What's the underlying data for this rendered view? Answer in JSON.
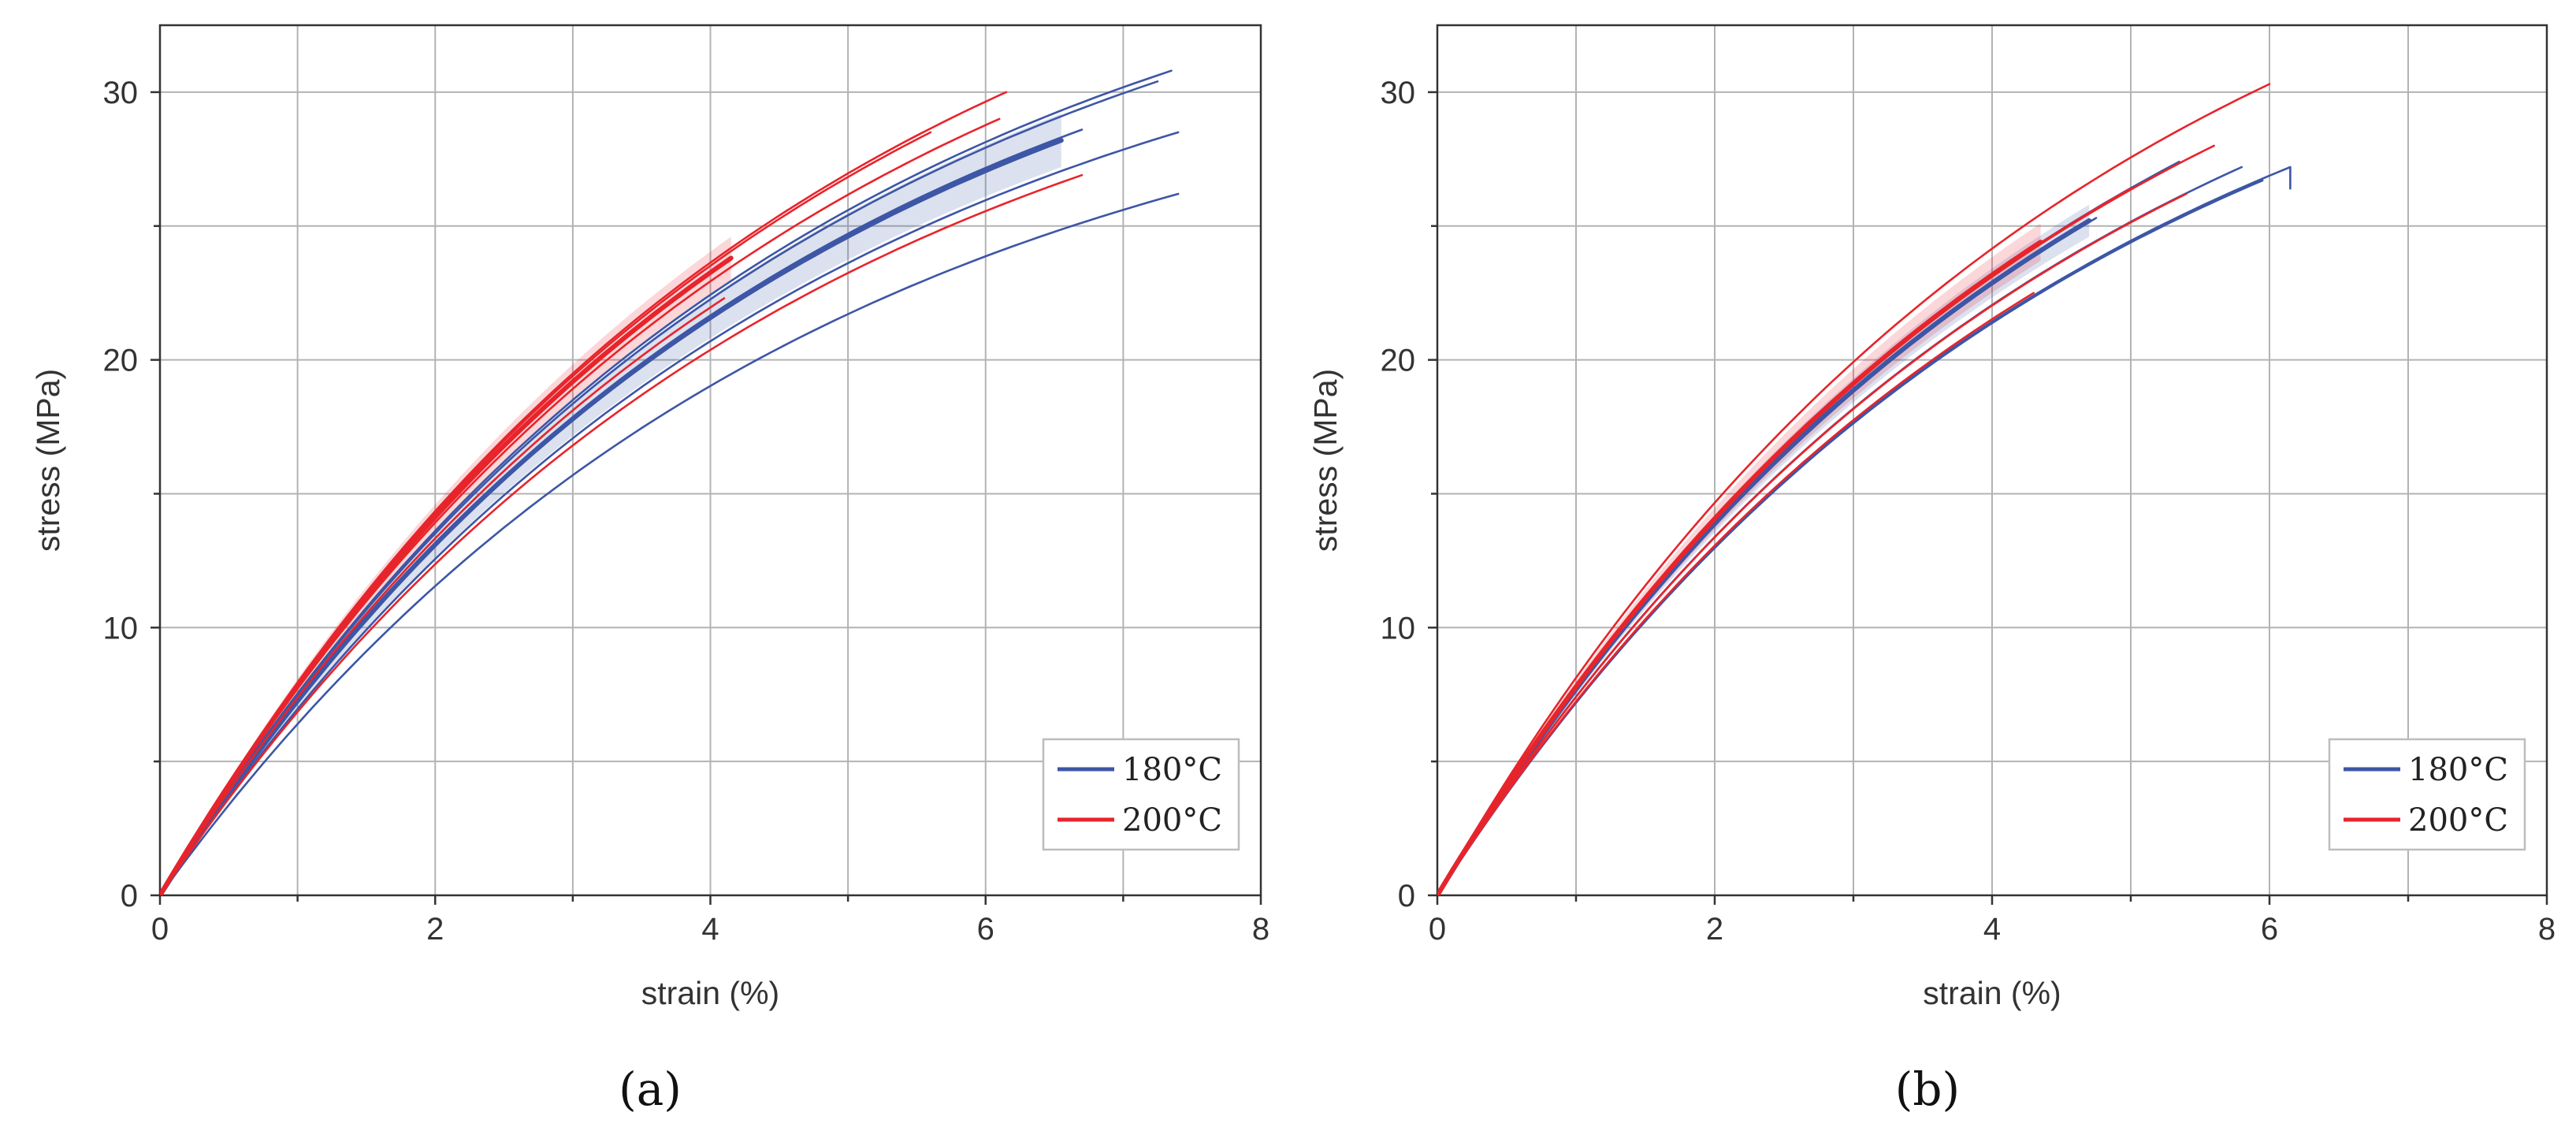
{
  "figure": {
    "captions": [
      "(a)",
      "(b)"
    ]
  },
  "colors": {
    "180": "#3d56a6",
    "200": "#e8242b",
    "band180": "#3d56a6",
    "band200": "#e8242b"
  },
  "chart_data": [
    {
      "type": "line",
      "panel": "a",
      "caption": "(a)",
      "xlabel": "strain (%)",
      "ylabel": "stress (MPa)",
      "xlim": [
        0,
        8
      ],
      "ylim": [
        0,
        32.5
      ],
      "xticks": [
        0,
        2,
        4,
        6,
        8
      ],
      "yticks": [
        0,
        10,
        20,
        30
      ],
      "grid": true,
      "legend": {
        "position": "bottom-right",
        "entries": [
          {
            "label": "180°C",
            "color": "#3d56a6"
          },
          {
            "label": "200°C",
            "color": "#e8242b"
          }
        ]
      },
      "series": [
        {
          "name": "180°C",
          "role": "specimen",
          "end_strain": 7.35,
          "end_stress": 30.8
        },
        {
          "name": "180°C",
          "role": "specimen",
          "end_strain": 7.25,
          "end_stress": 30.4
        },
        {
          "name": "180°C",
          "role": "specimen",
          "end_strain": 6.7,
          "end_stress": 28.6
        },
        {
          "name": "180°C",
          "role": "specimen",
          "end_strain": 7.4,
          "end_stress": 28.5
        },
        {
          "name": "180°C",
          "role": "specimen",
          "end_strain": 6.55,
          "end_stress": 28.2
        },
        {
          "name": "180°C",
          "role": "specimen",
          "end_strain": 7.4,
          "end_stress": 26.2
        },
        {
          "name": "180°C",
          "role": "mean",
          "end_strain": 6.55,
          "end_stress": 28.2,
          "band": 1.0
        },
        {
          "name": "200°C",
          "role": "specimen",
          "end_strain": 6.15,
          "end_stress": 30.0
        },
        {
          "name": "200°C",
          "role": "specimen",
          "end_strain": 5.6,
          "end_stress": 28.5
        },
        {
          "name": "200°C",
          "role": "specimen",
          "end_strain": 6.1,
          "end_stress": 29.0
        },
        {
          "name": "200°C",
          "role": "specimen",
          "end_strain": 6.7,
          "end_stress": 26.9
        },
        {
          "name": "200°C",
          "role": "specimen",
          "end_strain": 4.1,
          "end_stress": 22.3
        },
        {
          "name": "200°C",
          "role": "mean",
          "end_strain": 4.15,
          "end_stress": 23.8,
          "band": 0.8
        }
      ]
    },
    {
      "type": "line",
      "panel": "b",
      "caption": "(b)",
      "xlabel": "strain (%)",
      "ylabel": "stress (MPa)",
      "xlim": [
        0,
        8
      ],
      "ylim": [
        0,
        32.5
      ],
      "xticks": [
        0,
        2,
        4,
        6,
        8
      ],
      "yticks": [
        0,
        10,
        20,
        30
      ],
      "grid": true,
      "legend": {
        "position": "bottom-right",
        "entries": [
          {
            "label": "180°C",
            "color": "#3d56a6"
          },
          {
            "label": "200°C",
            "color": "#e8242b"
          }
        ]
      },
      "series": [
        {
          "name": "180°C",
          "role": "specimen",
          "end_strain": 6.15,
          "end_stress": 27.2,
          "drop_to": 26.4
        },
        {
          "name": "180°C",
          "role": "specimen",
          "end_strain": 5.95,
          "end_stress": 26.7
        },
        {
          "name": "180°C",
          "role": "specimen",
          "end_strain": 5.8,
          "end_stress": 27.2
        },
        {
          "name": "180°C",
          "role": "specimen",
          "end_strain": 5.35,
          "end_stress": 27.4
        },
        {
          "name": "180°C",
          "role": "specimen",
          "end_strain": 4.75,
          "end_stress": 25.3
        },
        {
          "name": "180°C",
          "role": "mean",
          "end_strain": 4.7,
          "end_stress": 25.2,
          "band": 0.6
        },
        {
          "name": "200°C",
          "role": "specimen",
          "end_strain": 6.0,
          "end_stress": 30.3
        },
        {
          "name": "200°C",
          "role": "specimen",
          "end_strain": 5.6,
          "end_stress": 28.0
        },
        {
          "name": "200°C",
          "role": "specimen",
          "end_strain": 5.4,
          "end_stress": 26.2
        },
        {
          "name": "200°C",
          "role": "specimen",
          "end_strain": 5.0,
          "end_stress": 26.4
        },
        {
          "name": "200°C",
          "role": "specimen",
          "end_strain": 4.3,
          "end_stress": 22.5
        },
        {
          "name": "200°C",
          "role": "mean",
          "end_strain": 4.35,
          "end_stress": 24.4,
          "band": 0.7
        }
      ]
    }
  ]
}
